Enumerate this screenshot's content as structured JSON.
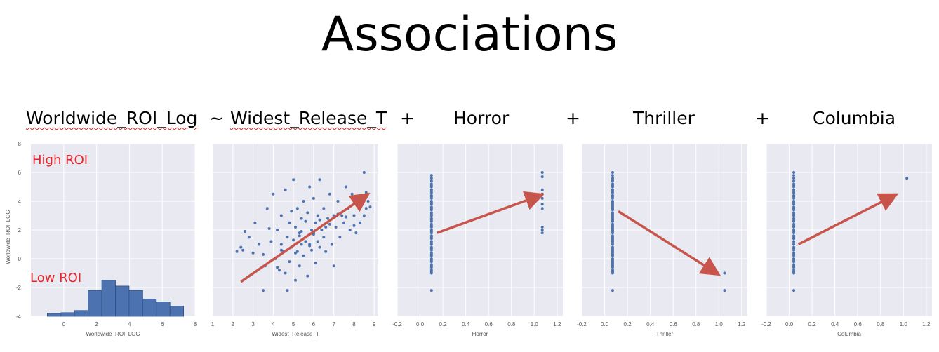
{
  "slide": {
    "title": "Associations",
    "formula": [
      {
        "text": "Worldwide_ROI_Log",
        "spell": true
      },
      {
        "text": "~",
        "spell": false
      },
      {
        "text": "Widest_Release_T",
        "spell": true
      },
      {
        "text": "+",
        "spell": false
      },
      {
        "text": "Horror",
        "spell": false
      },
      {
        "text": "+",
        "spell": false
      },
      {
        "text": "Thriller",
        "spell": false
      },
      {
        "text": "+",
        "spell": false
      },
      {
        "text": "Columbia",
        "spell": false
      }
    ]
  },
  "colors": {
    "panel": "#e9e9f1",
    "grid": "#ffffff",
    "bar": "#4c72b0",
    "point": "#4c72b0",
    "arrow": "#c8554c",
    "annotation": "#e8242a"
  },
  "chart_data": [
    {
      "type": "bar",
      "xlabel": "Worldwide_ROI_LOG",
      "ylabel": "Worldwide_ROI_LOG",
      "xlim": [
        -2,
        8
      ],
      "ylim": [
        -4,
        8
      ],
      "xticks": [
        "0",
        "2",
        "4",
        "6",
        "8"
      ],
      "yticks": [
        "-4",
        "-2",
        "0",
        "2",
        "4",
        "6",
        "8"
      ],
      "hist_range": [
        -1,
        7.3
      ],
      "bin_heights": [
        -3.8,
        -3.75,
        -3.6,
        -2.2,
        -1.5,
        -1.9,
        -2.2,
        -2.8,
        -3.0,
        -3.3
      ],
      "annotations": [
        "High ROI",
        "Low ROI"
      ]
    },
    {
      "type": "scatter",
      "xlabel": "Widest_Release_T",
      "xlim": [
        1,
        9.2
      ],
      "ylim": [
        -4,
        8
      ],
      "xticks": [
        "1",
        "2",
        "3",
        "4",
        "5",
        "6",
        "7",
        "8",
        "9"
      ],
      "arrow": {
        "from": [
          2.4,
          -1.6
        ],
        "to": [
          8.6,
          4.4
        ]
      },
      "x": [
        2.2,
        2.4,
        2.5,
        2.8,
        3.1,
        3.3,
        3.5,
        3.6,
        3.7,
        3.9,
        4.0,
        4.1,
        4.2,
        4.3,
        4.4,
        4.4,
        4.5,
        4.6,
        4.6,
        4.7,
        4.8,
        4.8,
        4.9,
        5.0,
        5.0,
        5.1,
        5.1,
        5.2,
        5.2,
        5.3,
        5.3,
        5.4,
        5.4,
        5.5,
        5.5,
        5.6,
        5.6,
        5.7,
        5.7,
        5.8,
        5.8,
        5.9,
        5.9,
        6.0,
        6.0,
        6.1,
        6.1,
        6.2,
        6.2,
        6.3,
        6.3,
        6.4,
        6.5,
        6.5,
        6.6,
        6.7,
        6.8,
        6.9,
        7.0,
        7.0,
        7.1,
        7.2,
        7.3,
        7.4,
        7.5,
        7.6,
        7.7,
        7.8,
        7.9,
        8.0,
        8.1,
        8.2,
        8.3,
        8.4,
        8.5,
        8.5,
        8.6,
        8.6,
        8.7,
        8.8,
        3.5,
        4.7,
        5.1,
        6.0,
        4.2,
        5.8,
        3.8,
        4.9,
        5.4,
        6.8,
        7.6,
        4.4,
        5.6,
        6.3,
        2.6,
        3.0,
        5.3,
        6.6,
        7.2,
        8.0
      ],
      "y": [
        0.5,
        0.8,
        0.6,
        1.5,
        2.5,
        1.0,
        0.3,
        -0.5,
        3.5,
        1.2,
        4.5,
        0.0,
        2.0,
        -0.8,
        1.0,
        3.0,
        0.5,
        -1.0,
        4.8,
        1.5,
        -0.2,
        2.5,
        0.8,
        1.3,
        5.5,
        -1.5,
        2.2,
        0.5,
        3.5,
        1.8,
        -0.5,
        2.8,
        1.0,
        4.0,
        0.2,
        1.5,
        2.6,
        -1.2,
        3.2,
        1.0,
        5.0,
        0.6,
        2.0,
        1.8,
        4.2,
        -0.3,
        2.5,
        1.2,
        3.0,
        0.8,
        5.5,
        2.0,
        1.5,
        3.5,
        0.5,
        2.8,
        4.5,
        1.0,
        3.0,
        -0.5,
        2.2,
        4.0,
        1.5,
        3.0,
        2.5,
        5.0,
        3.5,
        2.0,
        4.5,
        3.0,
        1.8,
        3.8,
        2.5,
        4.2,
        3.0,
        6.0,
        3.5,
        4.6,
        4.0,
        3.6,
        -2.2,
        -2.2,
        0.4,
        1.7,
        -0.6,
        0.9,
        2.1,
        3.3,
        1.9,
        2.4,
        2.9,
        0.6,
        1.2,
        2.7,
        1.9,
        0.4,
        1.6,
        2.2,
        3.1,
        2.3
      ]
    },
    {
      "type": "scatter",
      "xlabel": "Horror",
      "xlim": [
        -0.2,
        1.25
      ],
      "ylim": [
        -4,
        8
      ],
      "xticks": [
        "-0.2",
        "0.0",
        "0.2",
        "0.4",
        "0.6",
        "0.8",
        "1.0",
        "1.2"
      ],
      "arrow": {
        "from": [
          0.15,
          1.8
        ],
        "to": [
          1.05,
          4.4
        ]
      },
      "x": [
        0.1,
        0.1,
        0.1,
        0.1,
        0.1,
        0.1,
        0.1,
        0.1,
        0.1,
        0.1,
        0.1,
        0.1,
        0.1,
        0.1,
        0.1,
        0.1,
        0.1,
        0.1,
        0.1,
        0.1,
        0.1,
        0.1,
        0.1,
        0.1,
        0.1,
        0.1,
        0.1,
        0.1,
        0.1,
        0.1,
        0.1,
        0.1,
        0.1,
        0.1,
        0.1,
        0.1,
        0.1,
        0.1,
        0.1,
        0.1,
        0.1,
        0.1,
        0.1,
        0.1,
        0.1,
        0.1,
        0.1,
        0.1,
        0.1,
        0.1,
        0.1,
        0.1,
        1.07,
        1.07,
        1.07,
        1.07,
        1.07,
        1.07,
        1.07,
        1.07,
        1.07,
        1.07
      ],
      "y": [
        -2.2,
        -1.0,
        -0.8,
        -0.6,
        -0.4,
        -0.2,
        0.0,
        0.2,
        0.4,
        0.6,
        0.8,
        1.0,
        1.2,
        1.4,
        1.6,
        1.8,
        2.0,
        2.2,
        2.4,
        2.6,
        2.8,
        3.0,
        3.2,
        3.4,
        3.6,
        3.8,
        4.0,
        4.2,
        4.4,
        4.6,
        4.8,
        5.0,
        5.2,
        5.4,
        5.6,
        5.8,
        -0.9,
        -0.5,
        -0.1,
        0.3,
        0.7,
        1.1,
        1.5,
        1.9,
        2.3,
        2.7,
        3.1,
        3.5,
        3.9,
        4.3,
        4.7,
        5.1,
        6.0,
        5.7,
        4.8,
        4.5,
        4.2,
        3.8,
        3.5,
        2.2,
        2.0,
        1.8
      ]
    },
    {
      "type": "scatter",
      "xlabel": "Thriller",
      "xlim": [
        -0.2,
        1.25
      ],
      "ylim": [
        -4,
        8
      ],
      "xticks": [
        "-0.2",
        "0.0",
        "0.2",
        "0.4",
        "0.6",
        "0.8",
        "1.0",
        "1.2"
      ],
      "arrow": {
        "from": [
          0.12,
          3.3
        ],
        "to": [
          0.98,
          -1.0
        ]
      },
      "x": [
        0.07,
        0.07,
        0.07,
        0.07,
        0.07,
        0.07,
        0.07,
        0.07,
        0.07,
        0.07,
        0.07,
        0.07,
        0.07,
        0.07,
        0.07,
        0.07,
        0.07,
        0.07,
        0.07,
        0.07,
        0.07,
        0.07,
        0.07,
        0.07,
        0.07,
        0.07,
        0.07,
        0.07,
        0.07,
        0.07,
        0.07,
        0.07,
        0.07,
        0.07,
        0.07,
        0.07,
        0.07,
        0.07,
        0.07,
        0.07,
        0.07,
        0.07,
        0.07,
        0.07,
        0.07,
        0.07,
        0.07,
        0.07,
        0.07,
        0.07,
        0.07,
        0.07,
        0.07,
        0.07,
        0.07,
        0.07,
        0.07,
        0.07,
        0.07,
        0.07,
        1.05,
        1.05
      ],
      "y": [
        -2.2,
        -1.0,
        -0.8,
        -0.6,
        -0.4,
        -0.2,
        0.0,
        0.2,
        0.4,
        0.6,
        0.8,
        1.0,
        1.2,
        1.4,
        1.6,
        1.8,
        2.0,
        2.2,
        2.4,
        2.6,
        2.8,
        3.0,
        3.2,
        3.4,
        3.6,
        3.8,
        4.0,
        4.2,
        4.4,
        4.6,
        4.8,
        5.0,
        5.2,
        5.4,
        5.6,
        5.8,
        6.0,
        -0.9,
        -0.5,
        -0.1,
        0.3,
        0.7,
        1.1,
        1.5,
        1.9,
        2.3,
        2.7,
        3.1,
        3.5,
        3.9,
        4.3,
        4.7,
        5.1,
        5.5,
        -0.3,
        0.5,
        1.3,
        2.1,
        2.9,
        3.7,
        -1.0,
        -2.2
      ]
    },
    {
      "type": "scatter",
      "xlabel": "Columbia",
      "xlim": [
        -0.2,
        1.25
      ],
      "ylim": [
        -4,
        8
      ],
      "xticks": [
        "-0.2",
        "0.0",
        "0.2",
        "0.4",
        "0.6",
        "0.8",
        "1.0",
        "1.2"
      ],
      "arrow": {
        "from": [
          0.08,
          1.0
        ],
        "to": [
          0.92,
          4.4
        ]
      },
      "x": [
        0.04,
        0.04,
        0.04,
        0.04,
        0.04,
        0.04,
        0.04,
        0.04,
        0.04,
        0.04,
        0.04,
        0.04,
        0.04,
        0.04,
        0.04,
        0.04,
        0.04,
        0.04,
        0.04,
        0.04,
        0.04,
        0.04,
        0.04,
        0.04,
        0.04,
        0.04,
        0.04,
        0.04,
        0.04,
        0.04,
        0.04,
        0.04,
        0.04,
        0.04,
        0.04,
        0.04,
        0.04,
        0.04,
        0.04,
        0.04,
        0.04,
        0.04,
        0.04,
        0.04,
        0.04,
        0.04,
        0.04,
        0.04,
        0.04,
        0.04,
        0.04,
        0.04,
        0.04,
        1.03
      ],
      "y": [
        -2.2,
        -1.0,
        -0.8,
        -0.6,
        -0.4,
        -0.2,
        0.0,
        0.2,
        0.4,
        0.6,
        0.8,
        1.0,
        1.2,
        1.4,
        1.6,
        1.8,
        2.0,
        2.2,
        2.4,
        2.6,
        2.8,
        3.0,
        3.2,
        3.4,
        3.6,
        3.8,
        4.0,
        4.2,
        4.4,
        4.6,
        4.8,
        5.0,
        5.2,
        5.4,
        5.6,
        5.8,
        6.0,
        -0.9,
        -0.5,
        -0.1,
        0.3,
        0.7,
        1.1,
        1.5,
        1.9,
        2.3,
        2.7,
        3.1,
        3.5,
        3.9,
        4.3,
        4.7,
        5.1,
        5.6
      ]
    }
  ]
}
